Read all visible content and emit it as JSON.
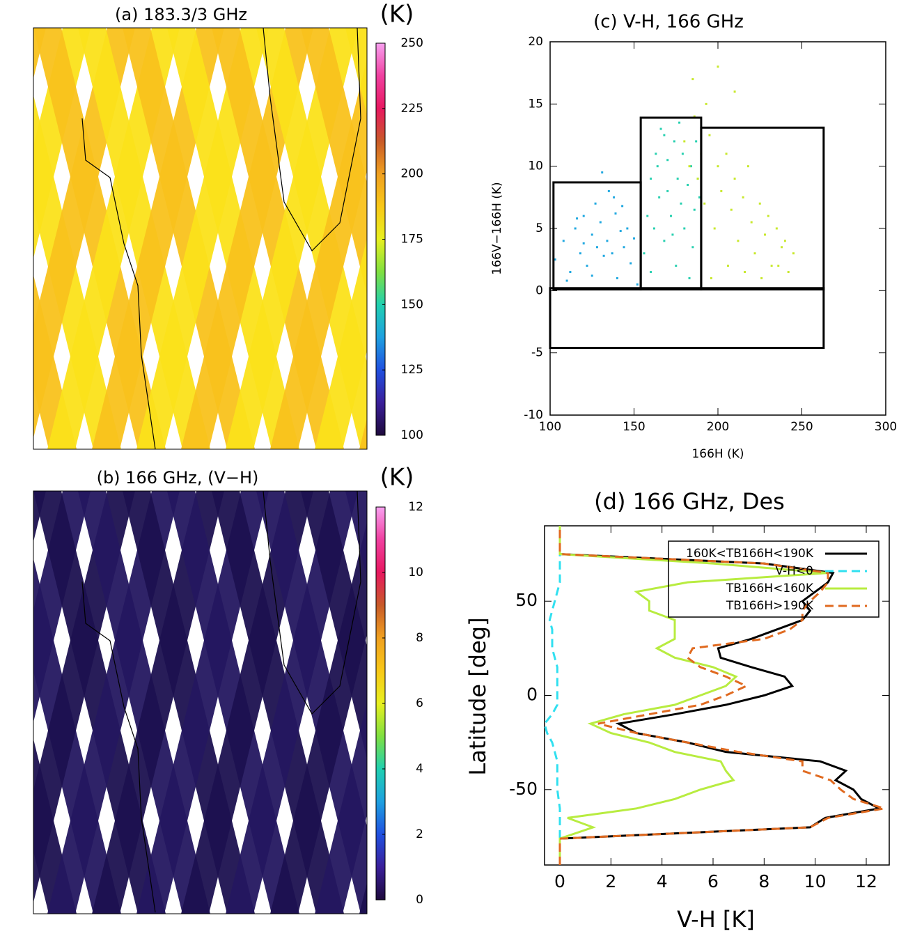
{
  "chart_data": [
    {
      "type": "map",
      "title": "(a) 183.3/3 GHz",
      "colorbar_label": "(K)",
      "colorbar_lim": [
        100,
        250
      ],
      "colorbar_ticks": [
        100,
        125,
        150,
        175,
        200,
        225,
        250
      ],
      "colormap": [
        "#1e0a3c",
        "#3a1f9a",
        "#2050e0",
        "#1ea0e0",
        "#20d0b0",
        "#80e040",
        "#e8f020",
        "#f8c818",
        "#f0a020",
        "#c85a28",
        "#e81860",
        "#f040a0",
        "#f8a0f0"
      ],
      "swath_colors": [
        "#f9c21c",
        "#fbe21a"
      ]
    },
    {
      "type": "map",
      "title": "(b) 166 GHz, (V−H)",
      "colorbar_label": "(K)",
      "colorbar_lim": [
        0,
        12
      ],
      "colorbar_ticks": [
        0,
        2,
        4,
        6,
        8,
        10,
        12
      ],
      "colormap": [
        "#1e0a3c",
        "#3a1f9a",
        "#2050e0",
        "#1ea0e0",
        "#20d0b0",
        "#80e040",
        "#e8f020",
        "#f8c818",
        "#f0a020",
        "#c85a28",
        "#e81860",
        "#f040a0",
        "#f8a0f0"
      ],
      "swath_colors": [
        "#1c1150",
        "#241760"
      ]
    },
    {
      "type": "scatter",
      "title": "(c) V-H, 166 GHz",
      "xlabel": "166H (K)",
      "ylabel": "166V−166H (K)",
      "xlim": [
        100,
        300
      ],
      "ylim": [
        -10,
        20
      ],
      "xticks": [
        100,
        150,
        200,
        250,
        300
      ],
      "yticks": [
        -10,
        -5,
        0,
        5,
        10,
        15,
        20
      ],
      "series": [
        {
          "color": "#20a8e0",
          "x": [
            103,
            108,
            112,
            115,
            118,
            120,
            122,
            125,
            127,
            128,
            130,
            132,
            134,
            135,
            137,
            139,
            140,
            142,
            144,
            146,
            148,
            150,
            110,
            125,
            138,
            131,
            120,
            143,
            116,
            152
          ],
          "y": [
            2.5,
            4,
            1.5,
            5,
            3,
            6,
            2,
            4.5,
            7,
            3.5,
            5.5,
            2.8,
            4,
            8,
            3,
            6.2,
            1,
            4.8,
            3.5,
            5,
            2.2,
            4.2,
            0.8,
            1.2,
            7.5,
            9.5,
            3.8,
            6.8,
            5.8,
            0.5
          ]
        },
        {
          "color": "#28d0b0",
          "x": [
            156,
            158,
            160,
            162,
            163,
            165,
            166,
            168,
            170,
            170,
            172,
            174,
            175,
            176,
            178,
            179,
            180,
            182,
            184,
            185,
            186,
            188,
            160,
            168,
            177,
            183,
            164,
            173,
            187,
            189
          ],
          "y": [
            3,
            6,
            9,
            5,
            11,
            7.5,
            13,
            4,
            8,
            10.5,
            6,
            12,
            2,
            9,
            7,
            11,
            5,
            8.5,
            10,
            3.5,
            6.5,
            9,
            1.5,
            12.5,
            13.5,
            1,
            10,
            4.5,
            12,
            7.5
          ]
        },
        {
          "color": "#c8e82c",
          "x": [
            180,
            183,
            186,
            188,
            190,
            192,
            195,
            198,
            200,
            202,
            205,
            208,
            210,
            212,
            215,
            218,
            220,
            222,
            225,
            228,
            230,
            232,
            235,
            238,
            240,
            242,
            245,
            196,
            206,
            216,
            226,
            236,
            185,
            193,
            200,
            210
          ],
          "y": [
            12,
            10,
            14,
            9,
            11,
            7,
            12.5,
            5,
            10,
            8,
            11,
            6.5,
            9,
            4,
            7.5,
            10,
            5.5,
            3,
            7,
            4.5,
            6,
            2,
            5,
            3.5,
            4,
            1.5,
            3,
            1,
            2,
            1.5,
            1,
            2,
            17,
            15,
            18,
            16
          ]
        }
      ],
      "boxes": [
        {
          "x": [
            102,
            154
          ],
          "y": [
            0.1,
            8.7
          ]
        },
        {
          "x": [
            154,
            190
          ],
          "y": [
            0.1,
            13.9
          ]
        },
        {
          "x": [
            190,
            263
          ],
          "y": [
            0.1,
            13.1
          ]
        },
        {
          "x": [
            100,
            263
          ],
          "y": [
            -4.6,
            0.2
          ]
        }
      ]
    },
    {
      "type": "line",
      "title": "(d)  166 GHz, Des",
      "xlabel": "V-H [K]",
      "ylabel": "Latitude [deg]",
      "xlim": [
        -0.6,
        12.9
      ],
      "ylim": [
        -90,
        90
      ],
      "xticks": [
        0,
        2,
        4,
        6,
        8,
        10,
        12
      ],
      "yticks": [
        -50,
        0,
        50
      ],
      "y": [
        -90,
        -76,
        -70,
        -65,
        -60,
        -55,
        -50,
        -45,
        -40,
        -35,
        -30,
        -25,
        -20,
        -15,
        -10,
        -5,
        0,
        5,
        10,
        15,
        20,
        25,
        30,
        35,
        40,
        45,
        50,
        55,
        60,
        65,
        70,
        75,
        90
      ],
      "series": [
        {
          "name": "160K<TB166H<190K",
          "color": "#000000",
          "dash": false,
          "values": [
            0,
            0,
            9.8,
            10.4,
            12.5,
            11.8,
            11.5,
            10.8,
            11.2,
            10.2,
            6.5,
            5,
            3,
            2.3,
            4.5,
            6.5,
            8,
            9.1,
            8.8,
            7.5,
            6.3,
            6.2,
            7.5,
            8.5,
            9.5,
            9.8,
            9.5,
            10,
            10.5,
            10.7,
            8,
            0,
            0
          ]
        },
        {
          "name": "V-H<0",
          "color": "#30e0f0",
          "dash": true,
          "values": [
            0,
            0,
            0,
            0,
            0,
            -0.05,
            -0.1,
            -0.1,
            -0.1,
            -0.1,
            -0.2,
            -0.3,
            -0.5,
            -0.6,
            -0.3,
            -0.1,
            -0.1,
            -0.1,
            -0.1,
            -0.1,
            -0.2,
            -0.3,
            -0.3,
            -0.3,
            -0.4,
            -0.3,
            -0.2,
            -0.1,
            0,
            0,
            0,
            0,
            0
          ]
        },
        {
          "name": "TB166H<160K",
          "color": "#b8ec40",
          "dash": false,
          "values": [
            0,
            0,
            1.3,
            0.3,
            3,
            4.5,
            5.5,
            6.8,
            6.5,
            6.3,
            4.5,
            3.5,
            2,
            1.2,
            2.5,
            4.5,
            5.5,
            6.5,
            6.9,
            6,
            4.5,
            3.8,
            4.5,
            4.5,
            4.5,
            3.5,
            3.5,
            3,
            5,
            10.5,
            6,
            0,
            0
          ]
        },
        {
          "name": "TB166H>190K",
          "color": "#e06a20",
          "dash": true,
          "values": [
            0,
            0,
            9.8,
            10.5,
            12.7,
            11.5,
            11,
            10.6,
            9.5,
            9.5,
            7,
            5,
            3,
            1.5,
            3.5,
            5.5,
            6.5,
            7.3,
            6.5,
            5.5,
            5,
            5.2,
            8,
            9,
            9.5,
            9.5,
            9.8,
            10.2,
            10.5,
            10.5,
            8,
            0,
            0
          ]
        }
      ]
    }
  ]
}
